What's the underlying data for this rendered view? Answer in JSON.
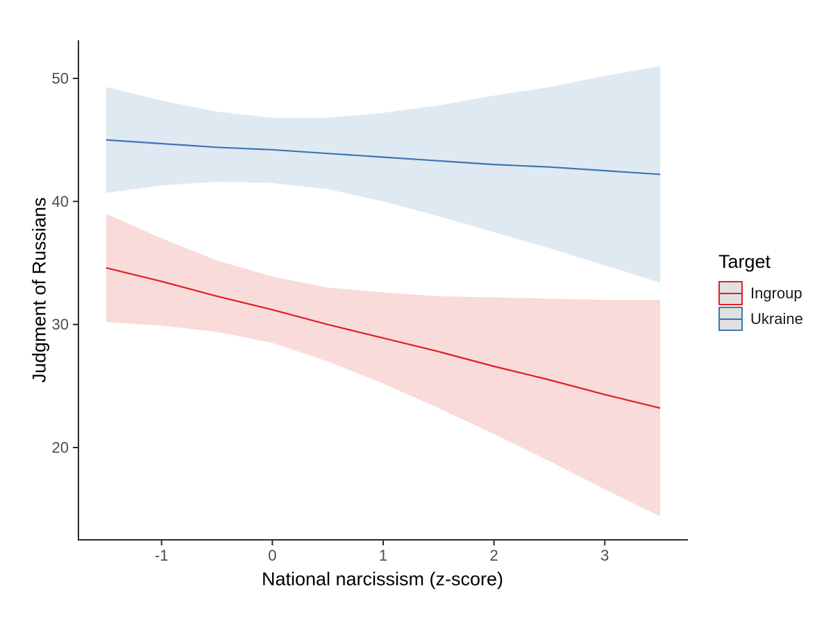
{
  "figure": {
    "y_axis_title": "Judgment of Russians",
    "x_axis_title": "National narcissism (z-score)",
    "legend": {
      "title": "Target",
      "items": [
        {
          "label": "Ingroup",
          "line_color": "#E02020",
          "key_fill": "#E1E1E1"
        },
        {
          "label": "Ukraine",
          "line_color": "#3D76B0",
          "key_fill": "#E1E1E1"
        }
      ]
    }
  },
  "chart_data": {
    "type": "line",
    "title": "",
    "xlabel": "National narcissism (z-score)",
    "ylabel": "Judgment of Russians",
    "legend_title": "Target",
    "legend_position": "right",
    "grid": false,
    "xlim": [
      -1.75,
      3.75
    ],
    "ylim": [
      12.5,
      53.1
    ],
    "x_ticks": [
      -1,
      0,
      1,
      2,
      3
    ],
    "y_ticks": [
      20,
      30,
      40,
      50
    ],
    "x": [
      -1.5,
      -1.0,
      -0.5,
      0.0,
      0.5,
      1.0,
      1.5,
      2.0,
      2.5,
      3.0,
      3.5
    ],
    "series": [
      {
        "name": "Ingroup",
        "color": "#E02020",
        "fill": "#F9DBDA",
        "values": [
          34.6,
          33.5,
          32.3,
          31.2,
          30.0,
          28.9,
          27.8,
          26.6,
          25.5,
          24.3,
          23.2
        ],
        "ci_lower": [
          30.2,
          29.9,
          29.4,
          28.5,
          27.0,
          25.2,
          23.2,
          21.1,
          18.9,
          16.6,
          14.4
        ],
        "ci_upper": [
          39.0,
          37.0,
          35.2,
          33.9,
          33.0,
          32.6,
          32.3,
          32.2,
          32.1,
          32.0,
          32.0
        ]
      },
      {
        "name": "Ukraine",
        "color": "#3D76B0",
        "fill": "#DFE9F2",
        "values": [
          45.0,
          44.7,
          44.4,
          44.2,
          43.9,
          43.6,
          43.3,
          43.0,
          42.8,
          42.5,
          42.2
        ],
        "ci_lower": [
          40.7,
          41.3,
          41.6,
          41.5,
          41.0,
          40.0,
          38.8,
          37.5,
          36.2,
          34.8,
          33.4
        ],
        "ci_upper": [
          49.3,
          48.2,
          47.3,
          46.8,
          46.8,
          47.2,
          47.8,
          48.6,
          49.3,
          50.2,
          51.0
        ]
      }
    ],
    "axis_color": "#2b2b2b",
    "tick_label_color": "#4D4D4D"
  }
}
